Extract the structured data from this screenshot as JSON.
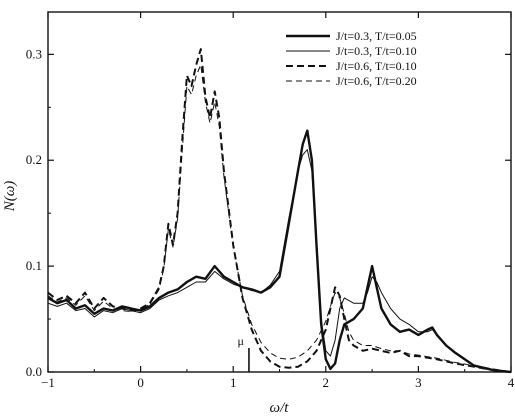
{
  "chart_data": {
    "type": "line",
    "title": "",
    "xlabel": "ω/t",
    "ylabel": "N(ω)",
    "xlim": [
      -1,
      4
    ],
    "ylim": [
      0,
      0.34
    ],
    "xticks": [
      -1,
      0,
      1,
      2,
      3,
      4
    ],
    "xtick_labels": [
      "−1",
      "0",
      "1",
      "2",
      "3",
      "4"
    ],
    "yticks": [
      0.0,
      0.1,
      0.2,
      0.3
    ],
    "ytick_labels": [
      "0.0",
      "0.1",
      "0.2",
      "0.3"
    ],
    "grid": false,
    "legend_position": "top-right",
    "annotation": {
      "text": "μ",
      "x": 1.17
    },
    "series": [
      {
        "name": "J/t=0.3, T/t=0.05",
        "style": "solid-thick",
        "x": [
          -1.0,
          -0.9,
          -0.8,
          -0.7,
          -0.6,
          -0.5,
          -0.4,
          -0.3,
          -0.2,
          -0.1,
          0.0,
          0.1,
          0.2,
          0.3,
          0.4,
          0.5,
          0.6,
          0.7,
          0.8,
          0.9,
          1.0,
          1.1,
          1.2,
          1.3,
          1.4,
          1.5,
          1.6,
          1.7,
          1.75,
          1.8,
          1.85,
          1.9,
          1.95,
          2.0,
          2.05,
          2.1,
          2.15,
          2.2,
          2.3,
          2.4,
          2.45,
          2.5,
          2.55,
          2.6,
          2.7,
          2.8,
          2.9,
          3.0,
          3.1,
          3.15,
          3.2,
          3.3,
          3.4,
          3.5,
          3.6,
          3.8,
          4.0
        ],
        "y": [
          0.07,
          0.065,
          0.068,
          0.06,
          0.063,
          0.055,
          0.06,
          0.058,
          0.062,
          0.06,
          0.058,
          0.062,
          0.07,
          0.075,
          0.078,
          0.085,
          0.09,
          0.088,
          0.1,
          0.09,
          0.085,
          0.08,
          0.078,
          0.075,
          0.08,
          0.09,
          0.14,
          0.19,
          0.215,
          0.228,
          0.2,
          0.12,
          0.045,
          0.012,
          0.003,
          0.008,
          0.03,
          0.045,
          0.05,
          0.06,
          0.08,
          0.1,
          0.08,
          0.06,
          0.045,
          0.038,
          0.04,
          0.035,
          0.04,
          0.042,
          0.035,
          0.025,
          0.018,
          0.012,
          0.006,
          0.002,
          0.0
        ]
      },
      {
        "name": "J/t=0.3, T/t=0.10",
        "style": "solid-thin",
        "x": [
          -1.0,
          -0.9,
          -0.8,
          -0.7,
          -0.6,
          -0.5,
          -0.4,
          -0.3,
          -0.2,
          -0.1,
          0.0,
          0.1,
          0.2,
          0.3,
          0.4,
          0.5,
          0.6,
          0.7,
          0.8,
          0.9,
          1.0,
          1.1,
          1.2,
          1.3,
          1.4,
          1.5,
          1.6,
          1.7,
          1.75,
          1.8,
          1.85,
          1.9,
          1.95,
          2.0,
          2.05,
          2.1,
          2.15,
          2.2,
          2.3,
          2.4,
          2.45,
          2.5,
          2.55,
          2.6,
          2.7,
          2.8,
          2.9,
          3.0,
          3.1,
          3.15,
          3.2,
          3.3,
          3.4,
          3.5,
          3.6,
          3.8,
          4.0
        ],
        "y": [
          0.065,
          0.062,
          0.065,
          0.058,
          0.06,
          0.052,
          0.058,
          0.056,
          0.06,
          0.058,
          0.056,
          0.06,
          0.068,
          0.072,
          0.075,
          0.08,
          0.085,
          0.085,
          0.095,
          0.088,
          0.083,
          0.08,
          0.077,
          0.075,
          0.082,
          0.095,
          0.145,
          0.19,
          0.205,
          0.21,
          0.19,
          0.12,
          0.05,
          0.02,
          0.015,
          0.03,
          0.06,
          0.07,
          0.065,
          0.065,
          0.075,
          0.09,
          0.085,
          0.075,
          0.06,
          0.05,
          0.045,
          0.038,
          0.038,
          0.04,
          0.035,
          0.025,
          0.018,
          0.012,
          0.006,
          0.002,
          0.0
        ]
      },
      {
        "name": "J/t=0.6, T/t=0.10",
        "style": "dashed-thick",
        "x": [
          -1.0,
          -0.9,
          -0.8,
          -0.7,
          -0.6,
          -0.5,
          -0.4,
          -0.3,
          -0.2,
          -0.1,
          0.0,
          0.1,
          0.2,
          0.25,
          0.3,
          0.35,
          0.4,
          0.45,
          0.5,
          0.55,
          0.6,
          0.65,
          0.7,
          0.75,
          0.8,
          0.85,
          0.9,
          1.0,
          1.1,
          1.2,
          1.3,
          1.4,
          1.5,
          1.6,
          1.7,
          1.8,
          1.9,
          2.0,
          2.05,
          2.1,
          2.15,
          2.2,
          2.25,
          2.3,
          2.4,
          2.5,
          2.6,
          2.7,
          2.8,
          2.9,
          3.0,
          3.2,
          3.4,
          3.6,
          3.8,
          4.0
        ],
        "y": [
          0.075,
          0.068,
          0.072,
          0.065,
          0.075,
          0.06,
          0.07,
          0.062,
          0.06,
          0.058,
          0.06,
          0.065,
          0.08,
          0.1,
          0.14,
          0.12,
          0.15,
          0.22,
          0.28,
          0.27,
          0.29,
          0.305,
          0.26,
          0.24,
          0.265,
          0.24,
          0.19,
          0.12,
          0.07,
          0.04,
          0.02,
          0.01,
          0.005,
          0.004,
          0.005,
          0.01,
          0.02,
          0.04,
          0.06,
          0.08,
          0.072,
          0.05,
          0.03,
          0.025,
          0.02,
          0.022,
          0.02,
          0.018,
          0.02,
          0.015,
          0.015,
          0.012,
          0.008,
          0.005,
          0.002,
          0.0
        ]
      },
      {
        "name": "J/t=0.6, T/t=0.20",
        "style": "dashed-thin",
        "x": [
          -1.0,
          -0.9,
          -0.8,
          -0.7,
          -0.6,
          -0.5,
          -0.4,
          -0.3,
          -0.2,
          -0.1,
          0.0,
          0.1,
          0.2,
          0.25,
          0.3,
          0.35,
          0.4,
          0.45,
          0.5,
          0.55,
          0.6,
          0.65,
          0.7,
          0.75,
          0.8,
          0.85,
          0.9,
          1.0,
          1.1,
          1.2,
          1.3,
          1.4,
          1.5,
          1.6,
          1.7,
          1.8,
          1.9,
          2.0,
          2.05,
          2.1,
          2.15,
          2.2,
          2.25,
          2.3,
          2.4,
          2.5,
          2.6,
          2.7,
          2.8,
          2.9,
          3.0,
          3.2,
          3.4,
          3.6,
          3.8,
          4.0
        ],
        "y": [
          0.072,
          0.066,
          0.07,
          0.063,
          0.072,
          0.058,
          0.067,
          0.06,
          0.058,
          0.057,
          0.059,
          0.064,
          0.078,
          0.098,
          0.135,
          0.118,
          0.145,
          0.21,
          0.27,
          0.262,
          0.28,
          0.29,
          0.255,
          0.235,
          0.255,
          0.232,
          0.185,
          0.118,
          0.072,
          0.045,
          0.028,
          0.018,
          0.013,
          0.012,
          0.014,
          0.02,
          0.03,
          0.048,
          0.062,
          0.075,
          0.07,
          0.055,
          0.038,
          0.03,
          0.025,
          0.025,
          0.022,
          0.02,
          0.02,
          0.017,
          0.016,
          0.013,
          0.009,
          0.006,
          0.003,
          0.0
        ]
      }
    ]
  }
}
